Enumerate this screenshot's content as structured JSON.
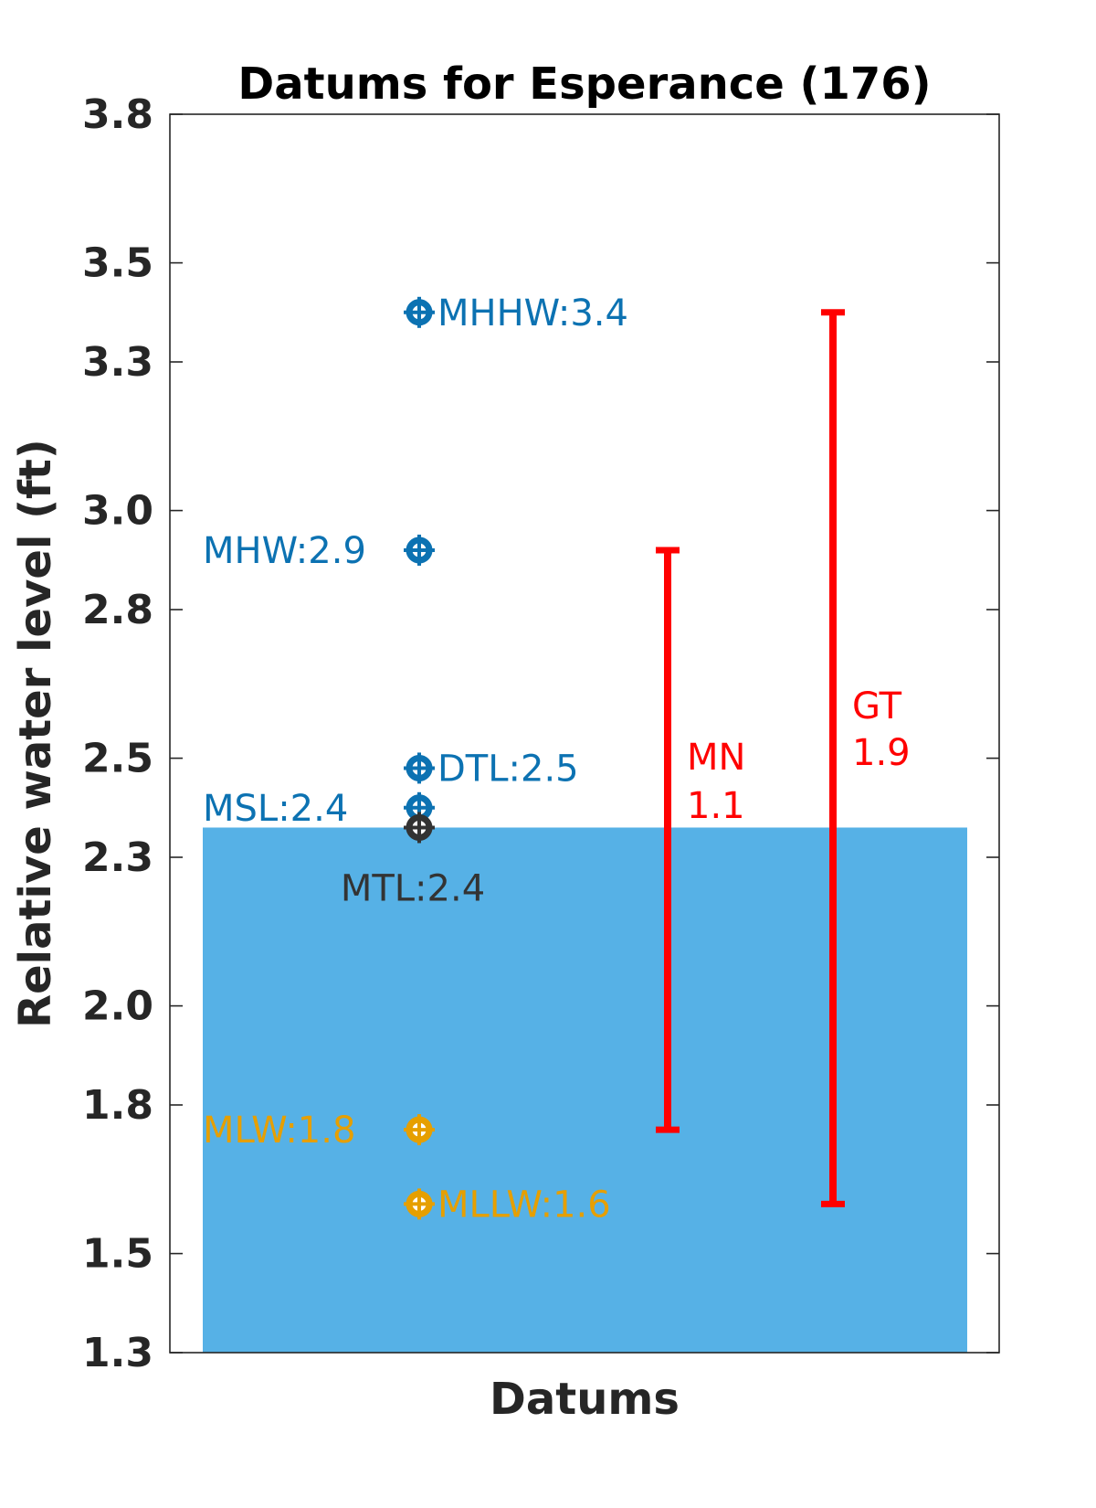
{
  "chart_data": {
    "type": "scatter",
    "title": "Datums for Esperance (176)",
    "xlabel": "Datums",
    "ylabel": "Relative water level (ft)",
    "ylim": [
      1.3,
      3.8
    ],
    "yticks": [
      1.3,
      1.5,
      1.8,
      2.0,
      2.3,
      2.5,
      2.8,
      3.0,
      3.3,
      3.5,
      3.8
    ],
    "ytick_labels": [
      "1.3",
      "1.5",
      "1.8",
      "2.0",
      "2.3",
      "2.5",
      "2.8",
      "3.0",
      "3.3",
      "3.5",
      "3.8"
    ],
    "grid": false,
    "background_bar": {
      "value": 2.36,
      "color": "#56b1e6"
    },
    "datums": [
      {
        "name": "MHHW",
        "label": "MHHW:3.4",
        "value": 3.4,
        "color": "#0c72b2",
        "label_side": "right"
      },
      {
        "name": "MHW",
        "label": "MHW:2.9",
        "value": 2.92,
        "color": "#0c72b2",
        "label_side": "left"
      },
      {
        "name": "DTL",
        "label": "DTL:2.5",
        "value": 2.48,
        "color": "#0c72b2",
        "label_side": "right"
      },
      {
        "name": "MSL",
        "label": "MSL:2.4",
        "value": 2.4,
        "color": "#0c72b2",
        "label_side": "left"
      },
      {
        "name": "MTL",
        "label": "MTL:2.4",
        "value": 2.36,
        "color": "#333333",
        "label_side": "below"
      },
      {
        "name": "MLW",
        "label": "MLW:1.8",
        "value": 1.75,
        "color": "#e69f00",
        "label_side": "left"
      },
      {
        "name": "MLLW",
        "label": "MLLW:1.6",
        "value": 1.6,
        "color": "#e69f00",
        "label_side": "right"
      }
    ],
    "ranges": [
      {
        "name": "MN",
        "value_text": "1.1",
        "low": 1.75,
        "high": 2.92,
        "color": "#ff0000"
      },
      {
        "name": "GT",
        "value_text": "1.9",
        "low": 1.6,
        "high": 3.4,
        "color": "#ff0000"
      }
    ]
  }
}
